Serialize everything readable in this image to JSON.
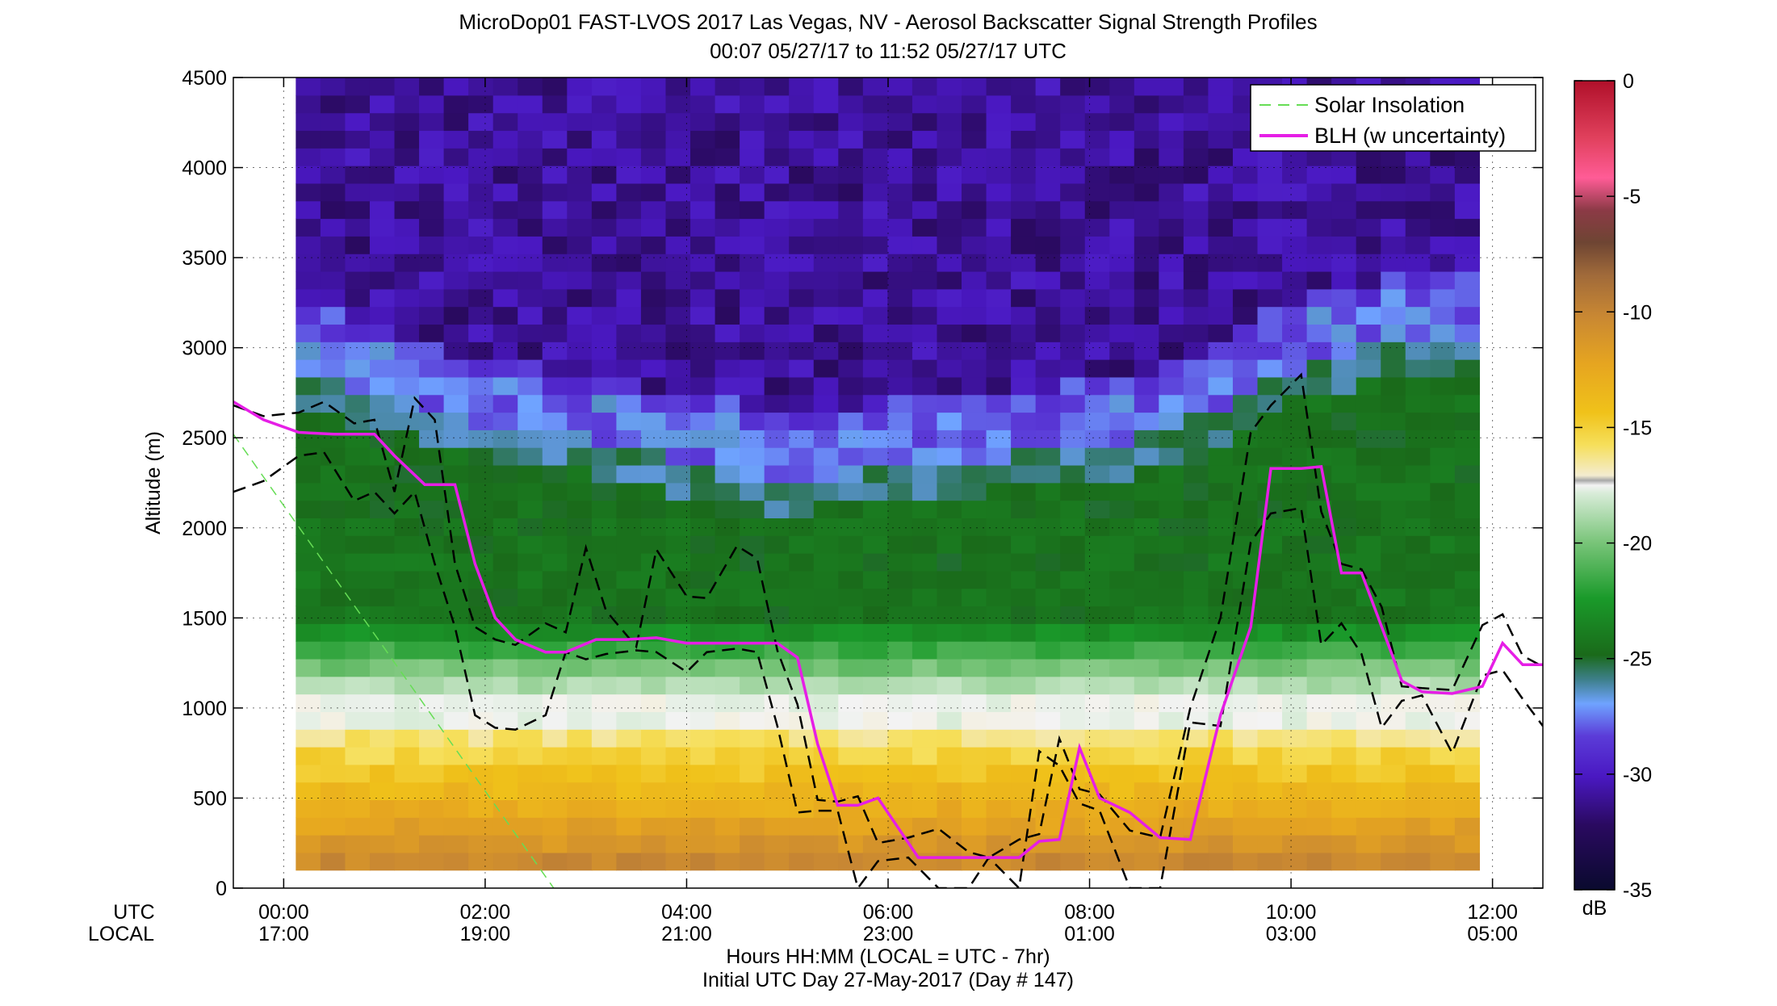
{
  "title": "MicroDop01 FAST-LVOS 2017 Las Vegas, NV - Aerosol Backscatter Signal Strength Profiles",
  "subtitle": "00:07 05/27/17 to 11:52 05/27/17  UTC",
  "footer_line1": "Hours HH:MM  (LOCAL = UTC - 7hr)",
  "footer_line2": "Initial UTC Day 27-May-2017 (Day # 147)",
  "utc_label": "UTC",
  "local_label": "LOCAL",
  "colorbar_unit": "dB",
  "colors": {
    "blh": "#e61ee6",
    "solar": "#66dd55",
    "uncertainty": "#000000"
  },
  "chart_data": {
    "type": "heatmap",
    "xlabel": "",
    "ylabel": "Altitude (m)",
    "xlim": [
      -0.5,
      12.5
    ],
    "ylim": [
      0,
      4500
    ],
    "grid": true,
    "legend_position": "top-right",
    "x_ticks_utc": [
      "00:00",
      "02:00",
      "04:00",
      "06:00",
      "08:00",
      "10:00",
      "12:00"
    ],
    "x_ticks_local": [
      "17:00",
      "19:00",
      "21:00",
      "23:00",
      "01:00",
      "03:00",
      "05:00"
    ],
    "y_ticks": [
      "0",
      "500",
      "1000",
      "1500",
      "2000",
      "2500",
      "3000",
      "3500",
      "4000",
      "4500"
    ],
    "colorbar": {
      "label": "dB",
      "range": [
        -35,
        0
      ],
      "ticks": [
        "0",
        "-5",
        "-10",
        "-15",
        "-20",
        "-25",
        "-30",
        "-35"
      ]
    },
    "heatmap_time_range_hours": [
      0.12,
      11.87
    ],
    "heatmap_altitude_range_m": [
      100,
      4500
    ],
    "features": {
      "aerosol_top_m": [
        [
          0.1,
          3000
        ],
        [
          1.5,
          2750
        ],
        [
          3,
          2600
        ],
        [
          5,
          2380
        ],
        [
          6.5,
          2480
        ],
        [
          8,
          2550
        ],
        [
          9,
          2700
        ],
        [
          10,
          3000
        ],
        [
          11,
          3150
        ],
        [
          11.87,
          3200
        ]
      ],
      "surface_layer_top_m": 880
    },
    "series": [
      {
        "name": "BLH (w uncertainty)",
        "x": [
          -0.5,
          -0.2,
          0.15,
          0.5,
          0.9,
          1.1,
          1.4,
          1.7,
          1.9,
          2.1,
          2.3,
          2.6,
          2.8,
          3.1,
          3.4,
          3.7,
          4.0,
          4.3,
          4.6,
          4.9,
          5.1,
          5.3,
          5.5,
          5.7,
          5.9,
          6.3,
          6.6,
          6.8,
          7.0,
          7.3,
          7.5,
          7.7,
          7.9,
          8.1,
          8.4,
          8.7,
          9.0,
          9.3,
          9.6,
          9.8,
          10.1,
          10.3,
          10.5,
          10.7,
          10.9,
          11.1,
          11.3,
          11.6,
          11.9,
          12.1,
          12.3,
          12.5
        ],
        "y": [
          2700,
          2600,
          2530,
          2520,
          2520,
          2400,
          2240,
          2240,
          1800,
          1500,
          1380,
          1310,
          1310,
          1380,
          1380,
          1390,
          1360,
          1360,
          1360,
          1360,
          1280,
          800,
          460,
          460,
          500,
          170,
          170,
          170,
          170,
          170,
          260,
          270,
          780,
          500,
          420,
          280,
          270,
          960,
          1450,
          2330,
          2330,
          2340,
          1750,
          1750,
          1450,
          1150,
          1090,
          1080,
          1120,
          1360,
          1240,
          1240
        ]
      },
      {
        "name": "BLH upper bound",
        "x": [
          -0.5,
          -0.2,
          0.15,
          0.4,
          0.7,
          0.9,
          1.1,
          1.3,
          1.5,
          1.7,
          1.9,
          2.1,
          2.3,
          2.6,
          2.8,
          3.0,
          3.2,
          3.5,
          3.7,
          4.0,
          4.2,
          4.5,
          4.7,
          4.9,
          5.1,
          5.3,
          5.5,
          5.7,
          5.9,
          6.2,
          6.5,
          6.8,
          7.0,
          7.3,
          7.5,
          7.7,
          7.9,
          8.1,
          8.4,
          8.7,
          9.0,
          9.3,
          9.6,
          9.8,
          10.1,
          10.3,
          10.5,
          10.7,
          10.9,
          11.1,
          11.3,
          11.6,
          11.9,
          12.1,
          12.3,
          12.5
        ],
        "y": [
          2680,
          2620,
          2640,
          2700,
          2580,
          2600,
          2200,
          2720,
          2600,
          1800,
          1450,
          1380,
          1350,
          1470,
          1420,
          1890,
          1540,
          1340,
          1880,
          1620,
          1610,
          1900,
          1830,
          1320,
          1020,
          490,
          480,
          510,
          250,
          280,
          330,
          200,
          170,
          270,
          300,
          830,
          550,
          520,
          320,
          280,
          1000,
          1500,
          2530,
          2680,
          2850,
          2090,
          1800,
          1770,
          1560,
          1120,
          1110,
          1100,
          1460,
          1520,
          1290,
          1230
        ]
      },
      {
        "name": "BLH lower bound",
        "x": [
          -0.5,
          -0.2,
          0.15,
          0.4,
          0.7,
          0.9,
          1.1,
          1.3,
          1.5,
          1.7,
          1.9,
          2.1,
          2.3,
          2.6,
          2.8,
          3.0,
          3.2,
          3.5,
          3.7,
          4.0,
          4.2,
          4.5,
          4.7,
          4.9,
          5.1,
          5.3,
          5.5,
          5.7,
          5.9,
          6.2,
          6.5,
          6.8,
          7.0,
          7.3,
          7.5,
          7.7,
          7.9,
          8.1,
          8.4,
          8.7,
          9.0,
          9.3,
          9.6,
          9.8,
          10.1,
          10.3,
          10.5,
          10.7,
          10.9,
          11.1,
          11.3,
          11.6,
          11.9,
          12.1,
          12.3,
          12.5
        ],
        "y": [
          2200,
          2260,
          2400,
          2420,
          2150,
          2200,
          2080,
          2200,
          1800,
          1450,
          960,
          890,
          880,
          960,
          1310,
          1270,
          1300,
          1320,
          1310,
          1200,
          1310,
          1330,
          1310,
          900,
          420,
          430,
          430,
          0,
          150,
          170,
          0,
          0,
          170,
          0,
          760,
          680,
          470,
          430,
          0,
          0,
          920,
          900,
          1920,
          2080,
          2110,
          1350,
          1470,
          1300,
          890,
          1040,
          1070,
          750,
          1180,
          1210,
          1050,
          900
        ]
      },
      {
        "name": "Solar Insolation",
        "x": [
          -0.5,
          2.68
        ],
        "y": [
          2520,
          0
        ]
      }
    ]
  }
}
